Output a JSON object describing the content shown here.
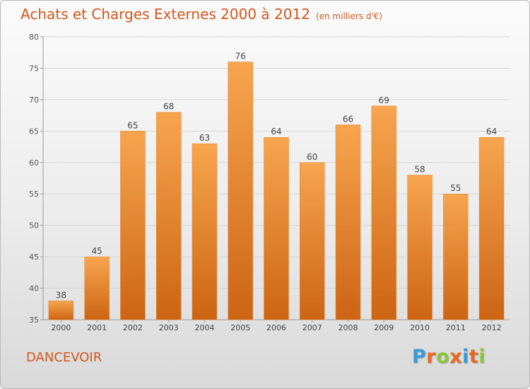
{
  "header": {
    "title": "Achats et Charges Externes 2000 à 2012",
    "unit": "(en milliers d'€)"
  },
  "footer": {
    "commune": "DANCEVOIR",
    "logo_text": "Proxiti",
    "logo_colors": [
      "#3a9bd5",
      "#e8681f",
      "#8cc63f",
      "#e8681f",
      "#3a9bd5",
      "#e8681f",
      "#8cc63f"
    ]
  },
  "colors": {
    "bar_top": "#f7a54e",
    "bar_bottom": "#cc6413",
    "title": "#d2581e",
    "axis": "#9a9a9a",
    "grid": "#d4d4d4"
  },
  "chart_data": {
    "type": "bar",
    "title": "Achats et Charges Externes 2000 à 2012",
    "subtitle": "(en milliers d'€)",
    "xlabel": "",
    "ylabel": "",
    "categories": [
      "2000",
      "2001",
      "2002",
      "2003",
      "2004",
      "2005",
      "2006",
      "2007",
      "2008",
      "2009",
      "2010",
      "2011",
      "2012"
    ],
    "values": [
      38,
      45,
      65,
      68,
      63,
      76,
      64,
      60,
      66,
      69,
      58,
      55,
      64
    ],
    "ylim": [
      35,
      80
    ],
    "yticks": [
      35,
      40,
      45,
      50,
      55,
      60,
      65,
      70,
      75,
      80
    ],
    "grid": true,
    "data_labels": true,
    "legend": "none"
  }
}
